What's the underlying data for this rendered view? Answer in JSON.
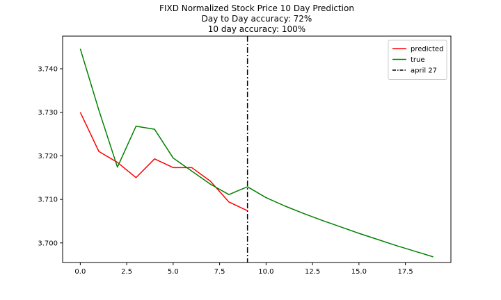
{
  "chart_data": {
    "type": "line",
    "title": "FIXD Normalized Stock Price 10 Day Prediction",
    "subtitle_lines": [
      "Day to Day accuracy: 72%",
      "10 day accuracy: 100%"
    ],
    "xlabel": "",
    "ylabel": "",
    "xlim": [
      -0.95,
      19.95
    ],
    "ylim": [
      3.6955,
      3.7475
    ],
    "x_ticks": [
      0.0,
      2.5,
      5.0,
      7.5,
      10.0,
      12.5,
      15.0,
      17.5
    ],
    "x_tick_labels": [
      "0.0",
      "2.5",
      "5.0",
      "7.5",
      "10.0",
      "12.5",
      "15.0",
      "17.5"
    ],
    "y_ticks": [
      3.7,
      3.71,
      3.72,
      3.73,
      3.74
    ],
    "y_tick_labels": [
      "3.700",
      "3.710",
      "3.720",
      "3.730",
      "3.740"
    ],
    "grid": false,
    "legend_position": "top-right",
    "series": [
      {
        "name": "predicted",
        "color": "#ff0000",
        "style": "solid",
        "x": [
          0,
          1,
          2,
          3,
          4,
          5,
          6,
          7,
          8,
          9
        ],
        "y": [
          3.73,
          3.721,
          3.7185,
          3.715,
          3.7193,
          3.7173,
          3.7173,
          3.7142,
          3.7094,
          3.7074
        ]
      },
      {
        "name": "true",
        "color": "#008000",
        "style": "solid",
        "x": [
          0,
          1,
          2,
          3,
          4,
          5,
          6,
          7,
          8,
          9,
          10,
          11,
          12,
          13,
          14,
          15,
          16,
          17,
          18,
          19
        ],
        "y": [
          3.7446,
          3.7305,
          3.7174,
          3.7268,
          3.7261,
          3.7195,
          3.7165,
          3.7135,
          3.7111,
          3.7129,
          3.7104,
          3.7085,
          3.7068,
          3.7052,
          3.7037,
          3.7022,
          3.7008,
          3.6994,
          3.6981,
          3.6968
        ]
      }
    ],
    "vlines": [
      {
        "name": "april 27",
        "x": 9,
        "color": "#000000",
        "style": "dashdot"
      }
    ]
  }
}
